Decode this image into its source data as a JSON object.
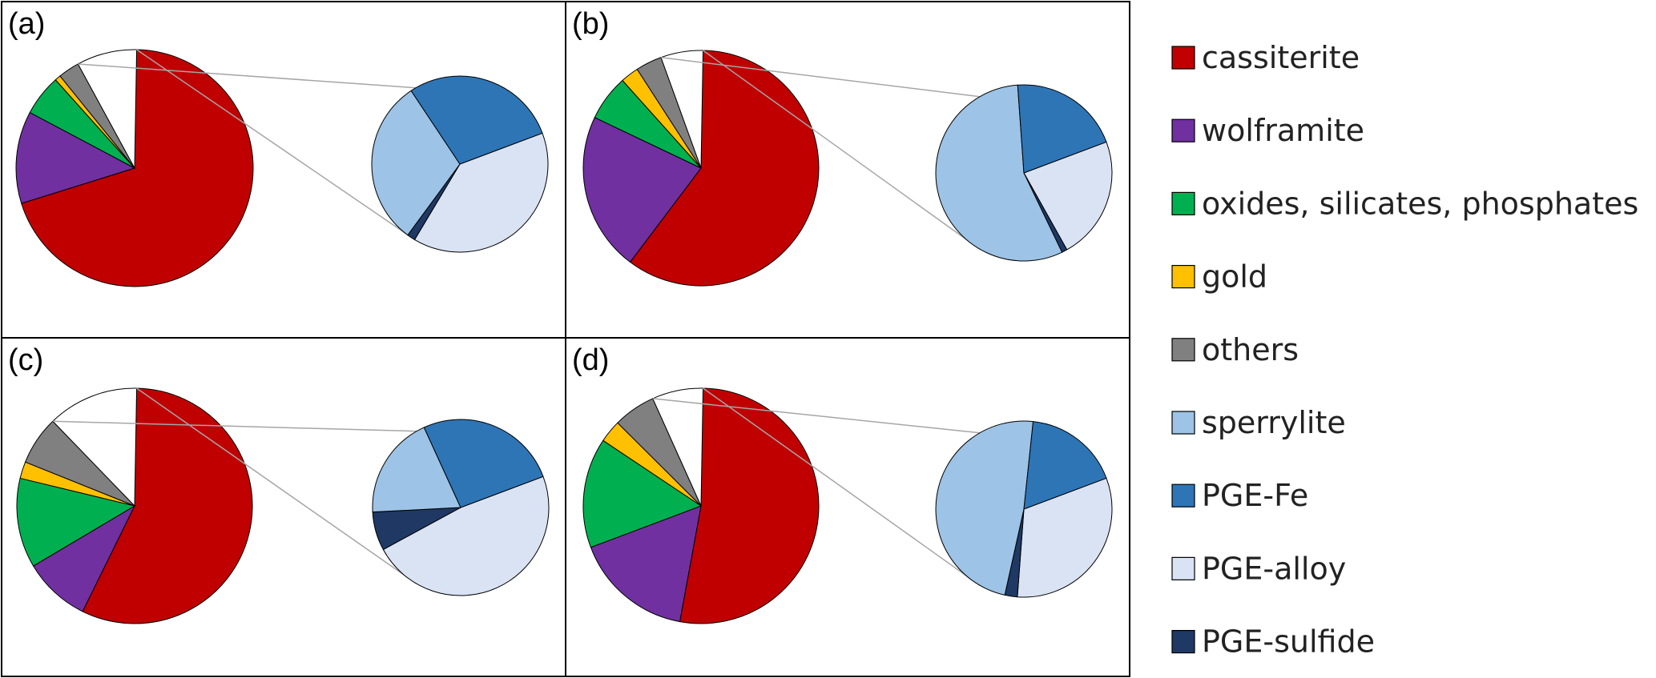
{
  "chart_data": {
    "type": "pie",
    "legend_placement": "right",
    "legend": [
      {
        "key": "cassiterite",
        "label": "cassiterite",
        "color": "#c00000"
      },
      {
        "key": "wolframite",
        "label": "wolframite",
        "color": "#7030a0"
      },
      {
        "key": "oxides",
        "label": "oxides, silicates, phosphates",
        "color": "#00b050"
      },
      {
        "key": "gold",
        "label": "gold",
        "color": "#ffc000"
      },
      {
        "key": "others",
        "label": "others",
        "color": "#808080"
      },
      {
        "key": "sperrylite",
        "label": "sperrylite",
        "color": "#9dc3e6"
      },
      {
        "key": "pge_fe",
        "label": "PGE-Fe",
        "color": "#2e75b6"
      },
      {
        "key": "pge_alloy",
        "label": "PGE-alloy",
        "color": "#dae3f3"
      },
      {
        "key": "pge_sulfide",
        "label": "PGE-sulfide",
        "color": "#1f3864"
      }
    ],
    "panels": [
      {
        "label": "(a)",
        "main": [
          {
            "key": "cassiterite",
            "value": 69.9
          },
          {
            "key": "wolframite",
            "value": 12.6
          },
          {
            "key": "oxides",
            "value": 5.6
          },
          {
            "key": "gold",
            "value": 0.8
          },
          {
            "key": "others",
            "value": 2.9
          },
          {
            "key": "pge",
            "value": 8.2
          }
        ],
        "sub": [
          {
            "key": "pge_alloy",
            "value": 39.3
          },
          {
            "key": "pge_sulfide",
            "value": 1.5
          },
          {
            "key": "sperrylite",
            "value": 30.6
          },
          {
            "key": "pge_fe",
            "value": 28.6
          }
        ]
      },
      {
        "label": "(b)",
        "main": [
          {
            "key": "cassiterite",
            "value": 60.0
          },
          {
            "key": "wolframite",
            "value": 21.8
          },
          {
            "key": "oxides",
            "value": 6.3
          },
          {
            "key": "gold",
            "value": 2.5
          },
          {
            "key": "others",
            "value": 3.6
          },
          {
            "key": "pge",
            "value": 5.8
          }
        ],
        "sub": [
          {
            "key": "pge_alloy",
            "value": 22.6
          },
          {
            "key": "pge_sulfide",
            "value": 1.0
          },
          {
            "key": "sperrylite",
            "value": 56.0
          },
          {
            "key": "pge_fe",
            "value": 20.4
          }
        ]
      },
      {
        "label": "(c)",
        "main": [
          {
            "key": "cassiterite",
            "value": 57.0
          },
          {
            "key": "wolframite",
            "value": 9.2
          },
          {
            "key": "oxides",
            "value": 12.3
          },
          {
            "key": "gold",
            "value": 2.3
          },
          {
            "key": "others",
            "value": 6.7
          },
          {
            "key": "pge",
            "value": 12.5
          }
        ],
        "sub": [
          {
            "key": "pge_alloy",
            "value": 47.8
          },
          {
            "key": "pge_sulfide",
            "value": 7.1
          },
          {
            "key": "sperrylite",
            "value": 19.0
          },
          {
            "key": "pge_fe",
            "value": 26.1
          }
        ]
      },
      {
        "label": "(d)",
        "main": [
          {
            "key": "cassiterite",
            "value": 52.6
          },
          {
            "key": "wolframite",
            "value": 16.4
          },
          {
            "key": "oxides",
            "value": 15.1
          },
          {
            "key": "gold",
            "value": 3.1
          },
          {
            "key": "others",
            "value": 5.8
          },
          {
            "key": "pge",
            "value": 7.0
          }
        ],
        "sub": [
          {
            "key": "pge_alloy",
            "value": 31.9
          },
          {
            "key": "pge_sulfide",
            "value": 2.3
          },
          {
            "key": "sperrylite",
            "value": 48.2
          },
          {
            "key": "pge_fe",
            "value": 17.6
          }
        ]
      }
    ]
  }
}
